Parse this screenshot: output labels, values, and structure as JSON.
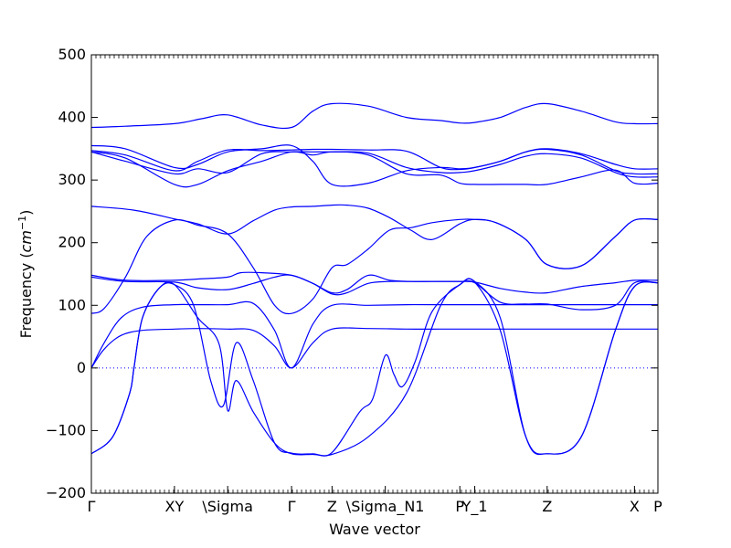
{
  "chart_data": {
    "type": "line",
    "title": "",
    "xlabel": "Wave vector",
    "ylabel": "Frequency",
    "ylabel_unit_base": "cm",
    "ylabel_unit_exp": "−1",
    "ylim": [
      -200,
      500
    ],
    "yticks": [
      -200,
      -100,
      0,
      100,
      200,
      300,
      400,
      500
    ],
    "xlim": [
      0,
      13.3
    ],
    "xticks": [
      {
        "x": 0.0,
        "label": "Γ"
      },
      {
        "x": 1.95,
        "label": "XY"
      },
      {
        "x": 3.2,
        "label": "\\Sigma"
      },
      {
        "x": 4.7,
        "label": "Γ"
      },
      {
        "x": 5.65,
        "label": "Z"
      },
      {
        "x": 6.9,
        "label": "\\Sigma_N1"
      },
      {
        "x": 8.65,
        "label": "P"
      },
      {
        "x": 9.0,
        "label": "Y_1"
      },
      {
        "x": 10.7,
        "label": "Z"
      },
      {
        "x": 12.75,
        "label": "X"
      },
      {
        "x": 13.3,
        "label": "P"
      }
    ],
    "zero_line": true,
    "line_color": "#0000ff",
    "series": [
      {
        "x": [
          0,
          0.8,
          1.95,
          2.6,
          3.2,
          4.0,
          4.7,
          5.2,
          5.65,
          6.5,
          7.4,
          8.2,
          8.65,
          9.0,
          9.6,
          10.2,
          10.7,
          11.5,
          12.3,
          12.75,
          13.3
        ],
        "values": [
          384,
          386,
          390,
          398,
          404,
          388,
          384,
          410,
          422,
          418,
          400,
          395,
          391,
          392,
          400,
          416,
          422,
          410,
          393,
          390,
          390
        ]
      },
      {
        "x": [
          0,
          0.8,
          1.95,
          2.5,
          3.2,
          4.0,
          4.7,
          5.2,
          5.65,
          6.5,
          7.4,
          8.2,
          8.65,
          9.0,
          9.6,
          10.2,
          10.7,
          11.5,
          12.3,
          12.75,
          13.3
        ],
        "values": [
          355,
          350,
          320,
          325,
          345,
          350,
          355,
          330,
          293,
          295,
          315,
          320,
          318,
          320,
          330,
          345,
          350,
          342,
          325,
          318,
          318
        ]
      },
      {
        "x": [
          0,
          0.8,
          1.95,
          2.5,
          3.2,
          4.0,
          4.7,
          5.2,
          5.65,
          6.5,
          7.4,
          8.2,
          8.65,
          9.0,
          9.6,
          10.2,
          10.7,
          11.5,
          12.3,
          12.75,
          13.3
        ],
        "values": [
          347,
          340,
          315,
          330,
          348,
          347,
          348,
          349,
          349,
          348,
          346,
          320,
          317,
          320,
          330,
          345,
          349,
          340,
          315,
          310,
          310
        ]
      },
      {
        "x": [
          0,
          0.8,
          1.95,
          2.5,
          3.2,
          4.0,
          4.7,
          5.2,
          5.65,
          6.5,
          7.4,
          8.2,
          8.65,
          9.0,
          9.6,
          10.2,
          10.7,
          11.5,
          12.3,
          12.75,
          13.3
        ],
        "values": [
          345,
          330,
          310,
          318,
          312,
          342,
          345,
          345,
          345,
          343,
          320,
          312,
          312,
          315,
          325,
          338,
          342,
          335,
          312,
          305,
          305
        ]
      },
      {
        "x": [
          0,
          0.8,
          1.95,
          2.5,
          3.2,
          4.0,
          4.7,
          5.2,
          5.65,
          6.5,
          7.4,
          8.2,
          8.65,
          9.0,
          9.6,
          10.2,
          10.7,
          11.5,
          12.3,
          12.75,
          13.3
        ],
        "values": [
          345,
          335,
          293,
          293,
          315,
          330,
          345,
          340,
          345,
          340,
          310,
          308,
          295,
          293,
          293,
          293,
          293,
          305,
          316,
          295,
          295
        ]
      },
      {
        "x": [
          0,
          1.0,
          1.95,
          2.5,
          3.2,
          3.8,
          4.3,
          4.7,
          5.2,
          5.65,
          6.0,
          6.5,
          7.0,
          7.5,
          8.0,
          8.65,
          9.0,
          9.5,
          10.2,
          10.7,
          11.5,
          12.3,
          12.75,
          13.3
        ],
        "values": [
          258,
          252,
          238,
          230,
          214,
          235,
          252,
          257,
          258,
          260,
          260,
          255,
          240,
          220,
          205,
          230,
          237,
          232,
          205,
          165,
          163,
          210,
          236,
          237
        ]
      },
      {
        "x": [
          0,
          0.3,
          0.8,
          1.3,
          1.95,
          2.5,
          3.2,
          3.8,
          4.3,
          4.7,
          5.2,
          5.65,
          6.0,
          6.5,
          7.0,
          7.5,
          8.0,
          8.65,
          9.0,
          9.5,
          10.2,
          10.7,
          11.5,
          12.3,
          12.75,
          13.3
        ],
        "values": [
          87,
          95,
          145,
          210,
          236,
          228,
          214,
          160,
          100,
          87,
          110,
          160,
          165,
          190,
          220,
          224,
          232,
          237,
          237,
          232,
          205,
          165,
          163,
          210,
          236,
          237
        ]
      },
      {
        "x": [
          0,
          0.8,
          1.95,
          2.5,
          3.2,
          3.5,
          4.0,
          4.7,
          5.2,
          5.65,
          6.0,
          6.5,
          7.0,
          7.5,
          8.0,
          8.65,
          9.0,
          9.6,
          10.2,
          10.7,
          11.5,
          12.3,
          12.75,
          13.3
        ],
        "values": [
          148,
          140,
          140,
          142,
          145,
          152,
          152,
          148,
          135,
          120,
          125,
          148,
          140,
          138,
          138,
          138,
          137,
          127,
          121,
          120,
          130,
          136,
          140,
          140
        ]
      },
      {
        "x": [
          0,
          0.8,
          1.95,
          2.5,
          3.2,
          3.8,
          4.3,
          4.7,
          5.2,
          5.65,
          6.0,
          6.5,
          7.0,
          7.5,
          8.0,
          8.65,
          9.0,
          9.6,
          10.2,
          10.7,
          11.5,
          12.3,
          12.75,
          13.3
        ],
        "values": [
          145,
          138,
          137,
          128,
          125,
          135,
          145,
          148,
          135,
          118,
          120,
          135,
          138,
          138,
          138,
          138,
          136,
          105,
          102,
          102,
          93,
          100,
          136,
          136
        ]
      },
      {
        "x": [
          0,
          0.3,
          0.7,
          1.2,
          1.95,
          2.5,
          3.2,
          3.8,
          4.3,
          4.7,
          5.2,
          5.65,
          6.5,
          7.4,
          8.2,
          8.65,
          9.0,
          9.6,
          10.2,
          10.7,
          11.5,
          12.3,
          12.75,
          13.3
        ],
        "values": [
          0,
          40,
          80,
          97,
          101,
          101,
          101,
          103,
          60,
          0,
          70,
          100,
          100,
          101,
          101,
          101,
          101,
          101,
          101,
          101,
          101,
          101,
          101,
          101
        ]
      },
      {
        "x": [
          0,
          0.3,
          0.7,
          1.2,
          1.95,
          2.5,
          3.2,
          3.8,
          4.3,
          4.7,
          5.2,
          5.65,
          6.5,
          7.4,
          8.2,
          8.65,
          9.0,
          9.6,
          10.2,
          10.7,
          11.5,
          12.3,
          12.75,
          13.3
        ],
        "values": [
          0,
          30,
          52,
          60,
          62,
          63,
          62,
          60,
          35,
          0,
          40,
          62,
          63,
          62,
          62,
          62,
          62,
          62,
          62,
          62,
          62,
          62,
          62,
          62
        ]
      },
      {
        "x": [
          0,
          0.5,
          0.9,
          1.0,
          1.2,
          1.6,
          1.95,
          2.5,
          3.0,
          3.2,
          3.4,
          3.8,
          4.3,
          4.7,
          5.2,
          5.65,
          6.5,
          7.4,
          8.2,
          8.65,
          9.0,
          9.6,
          10.2,
          10.7,
          11.5,
          12.3,
          12.75,
          13.3
        ],
        "values": [
          -137,
          -110,
          -40,
          0,
          80,
          128,
          133,
          80,
          38,
          -68,
          -20,
          -70,
          -120,
          -137,
          -138,
          -138,
          -110,
          -40,
          100,
          133,
          137,
          60,
          -110,
          -137,
          -110,
          60,
          130,
          136
        ]
      },
      {
        "x": [
          0,
          0.5,
          0.9,
          1.0,
          1.2,
          1.6,
          1.95,
          2.4,
          2.8,
          3.1,
          3.4,
          3.8,
          4.3,
          4.7,
          5.2,
          5.65,
          6.3,
          6.6,
          6.9,
          7.1,
          7.3,
          7.6,
          8.0,
          8.65,
          9.0,
          9.6,
          10.2,
          10.7,
          11.5,
          12.3,
          12.75,
          13.3
        ],
        "values": [
          -137,
          -110,
          -40,
          0,
          80,
          128,
          133,
          100,
          -20,
          -60,
          40,
          -20,
          -120,
          -136,
          -137,
          -135,
          -70,
          -50,
          20,
          -10,
          -30,
          10,
          90,
          133,
          138,
          80,
          -110,
          -137,
          -110,
          60,
          130,
          136
        ]
      }
    ]
  }
}
